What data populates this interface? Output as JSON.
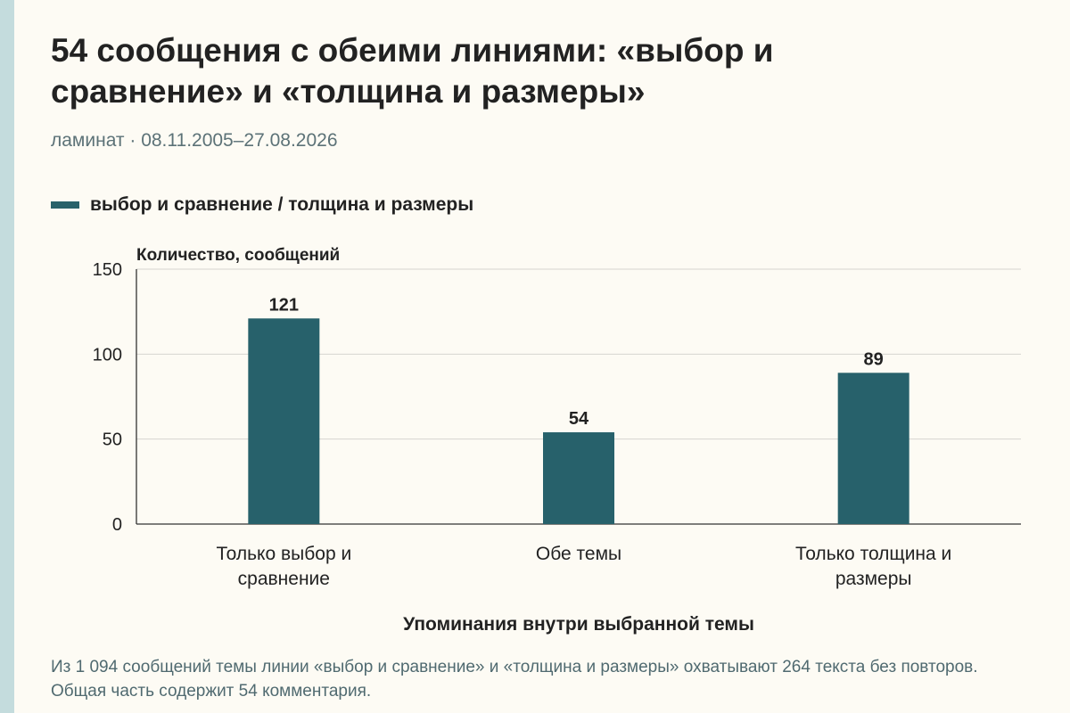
{
  "header": {
    "title": "54 сообщения с обеими линиями: «выбор и сравнение» и «толщина и размеры»",
    "subtitle": "ламинат · 08.11.2005–27.08.2026"
  },
  "legend": {
    "label": "выбор и сравнение / толщина и размеры"
  },
  "chart_data": {
    "type": "bar",
    "title": "54 сообщения с обеими линиями: «выбор и сравнение» и «толщина и размеры»",
    "ylabel": "Количество, сообщений",
    "xlabel": "Упоминания внутри выбранной темы",
    "categories": [
      [
        "Только выбор и",
        "сравнение"
      ],
      [
        "Обе темы"
      ],
      [
        "Только толщина и",
        "размеры"
      ]
    ],
    "series": [
      {
        "name": "выбор и сравнение / толщина и размеры",
        "values": [
          121,
          54,
          89
        ]
      }
    ],
    "ylim": [
      0,
      150
    ],
    "yticks": [
      0,
      50,
      100,
      150
    ],
    "grid": true,
    "legend_position": "top-left",
    "colors": {
      "bar": "#27616b",
      "grid": "#d6d6d0",
      "axis": "#333333",
      "tick_text": "#222222",
      "value_label": "#222222"
    }
  },
  "footer": {
    "note": "Из 1 094 сообщений темы линии «выбор и сравнение» и «толщина и размеры» охватывают 264 текста без повторов. Общая часть содержит 54 комментария."
  }
}
